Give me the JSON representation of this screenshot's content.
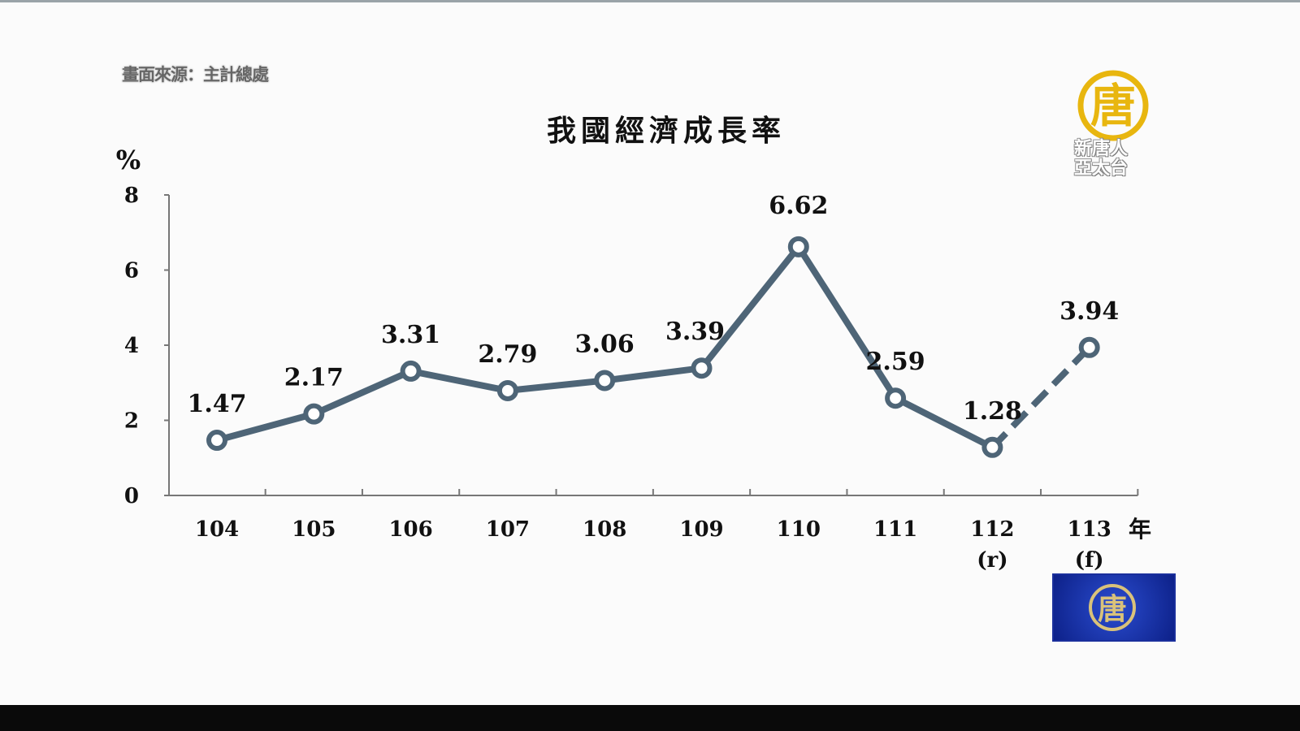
{
  "source": "畫面來源：主計總處",
  "broadcaster_logo": {
    "char": "唐",
    "text_line1": "新唐人",
    "text_line2": "亞太台"
  },
  "colors": {
    "line": "#4e6577",
    "logo_gold": "#e8b60f",
    "bug_blue": "#1a3bb5"
  },
  "chart_data": {
    "type": "line",
    "title": "我國經濟成長率",
    "ylabel": "%",
    "xlabel": "年",
    "ylim": [
      0,
      8
    ],
    "yticks": [
      0,
      2,
      4,
      6,
      8
    ],
    "grid": false,
    "categories": [
      "104",
      "105",
      "106",
      "107",
      "108",
      "109",
      "110",
      "111",
      "112\n(r)",
      "113\n(f)"
    ],
    "category_labels": [
      {
        "year": "104",
        "note": ""
      },
      {
        "year": "105",
        "note": ""
      },
      {
        "year": "106",
        "note": ""
      },
      {
        "year": "107",
        "note": ""
      },
      {
        "year": "108",
        "note": ""
      },
      {
        "year": "109",
        "note": ""
      },
      {
        "year": "110",
        "note": ""
      },
      {
        "year": "111",
        "note": ""
      },
      {
        "year": "112",
        "note": "(r)"
      },
      {
        "year": "113",
        "note": "(f)"
      }
    ],
    "values": [
      1.47,
      2.17,
      3.31,
      2.79,
      3.06,
      3.39,
      6.62,
      2.59,
      1.28,
      3.94
    ],
    "data_labels": [
      "1.47",
      "2.17",
      "3.31",
      "2.79",
      "3.06",
      "3.39",
      "6.62",
      "2.59",
      "1.28",
      "3.94"
    ],
    "forecast_dashed_from_index": 8
  }
}
